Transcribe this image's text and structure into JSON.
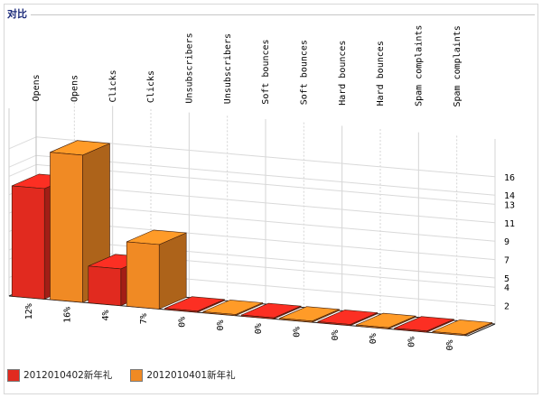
{
  "page": {
    "title": "对比"
  },
  "chart_data": {
    "type": "bar",
    "categories": [
      "Opens",
      "Clicks",
      "Unsubscribers",
      "Soft bounces",
      "Hard bounces",
      "Spam complaints"
    ],
    "series": [
      {
        "name": "2012010402新年礼",
        "color": "#e12a1f",
        "values": [
          12,
          4,
          0,
          0,
          0,
          0
        ],
        "labels": [
          "12%",
          "4%",
          "0%",
          "0%",
          "0%",
          "0%"
        ]
      },
      {
        "name": "2012010401新年礼",
        "color": "#f08a24",
        "values": [
          16,
          7,
          0,
          0,
          0,
          0
        ],
        "labels": [
          "16%",
          "7%",
          "0%",
          "0%",
          "0%",
          "0%"
        ]
      }
    ],
    "yticks": [
      2,
      4,
      5,
      7,
      9,
      11,
      13,
      14,
      16
    ],
    "ylim": [
      0,
      17
    ],
    "grid": true,
    "legend": "bottom-left"
  }
}
